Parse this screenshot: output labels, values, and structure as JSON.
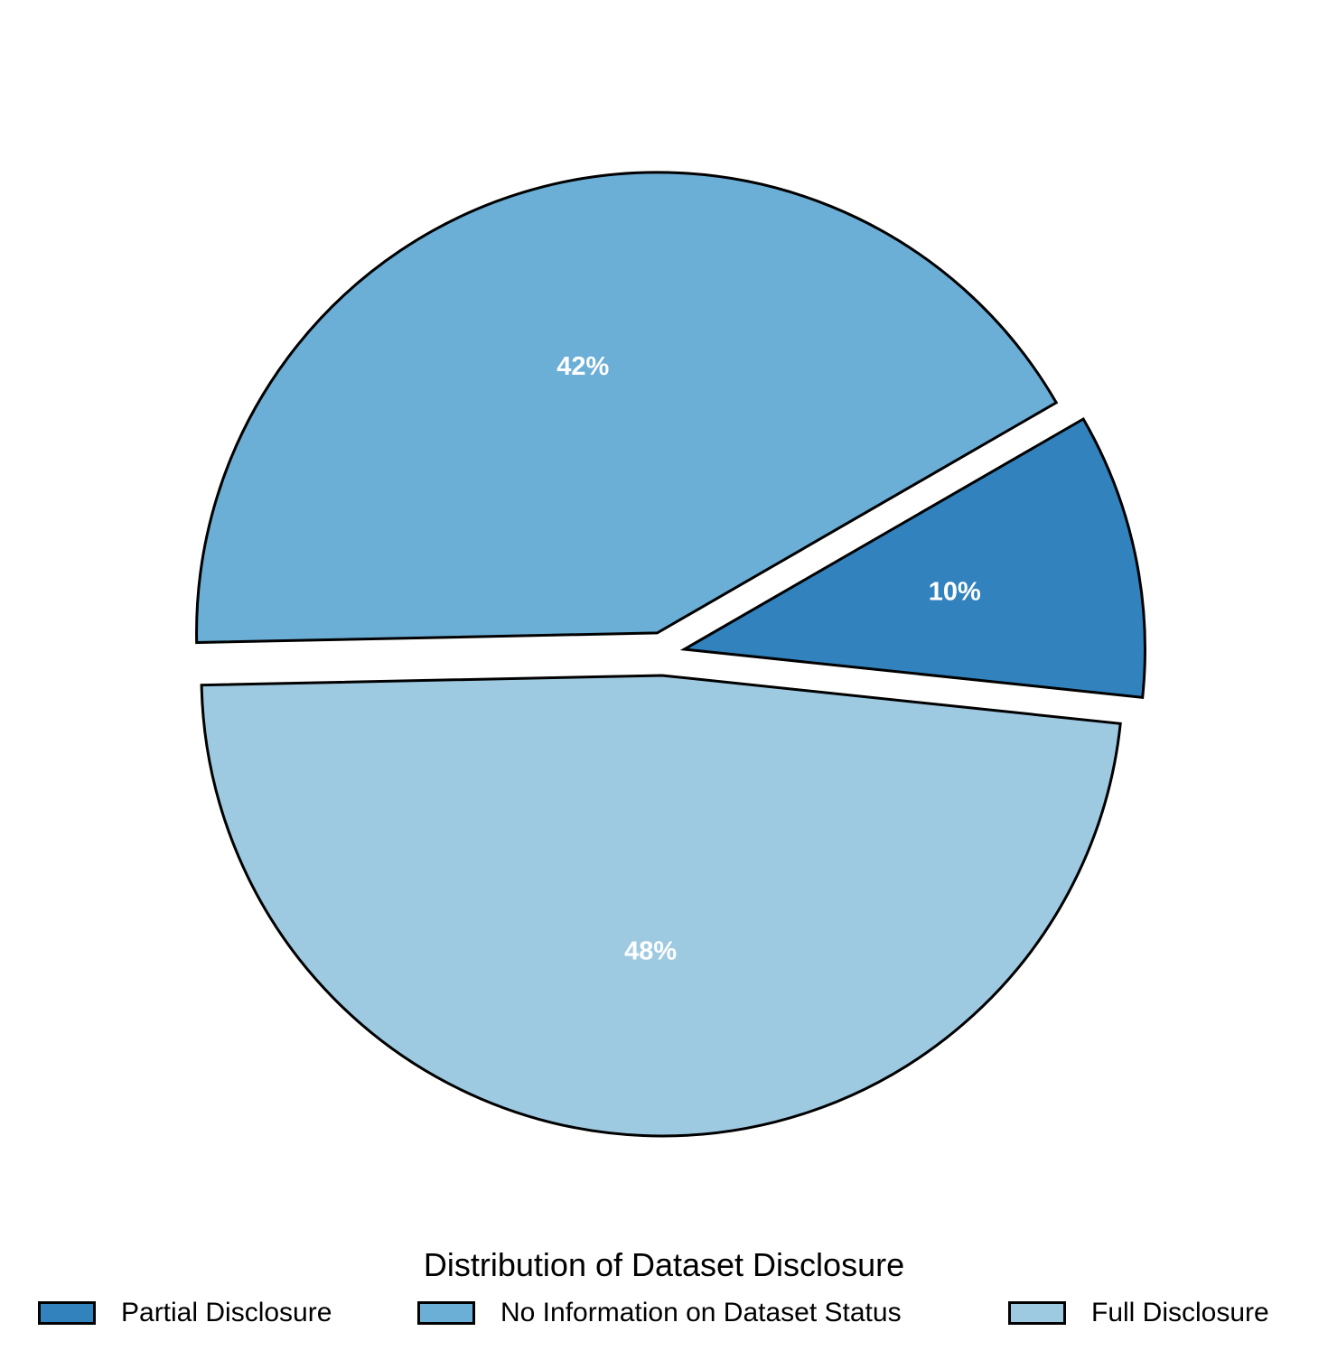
{
  "chart_data": {
    "type": "pie",
    "title": "",
    "legend_title": "Distribution of Dataset Disclosure",
    "legend_position": "bottom",
    "start_angle_deg": -6,
    "direction": "counterclockwise",
    "exploded": true,
    "slices": [
      {
        "name": "Partial Disclosure",
        "value": 10,
        "label": "10%",
        "color": "#3182bd"
      },
      {
        "name": "No Information on Dataset Status",
        "value": 42,
        "label": "42%",
        "color": "#6baed6"
      },
      {
        "name": "Full Disclosure",
        "value": 48,
        "label": "48%",
        "color": "#9ecae1"
      }
    ]
  }
}
